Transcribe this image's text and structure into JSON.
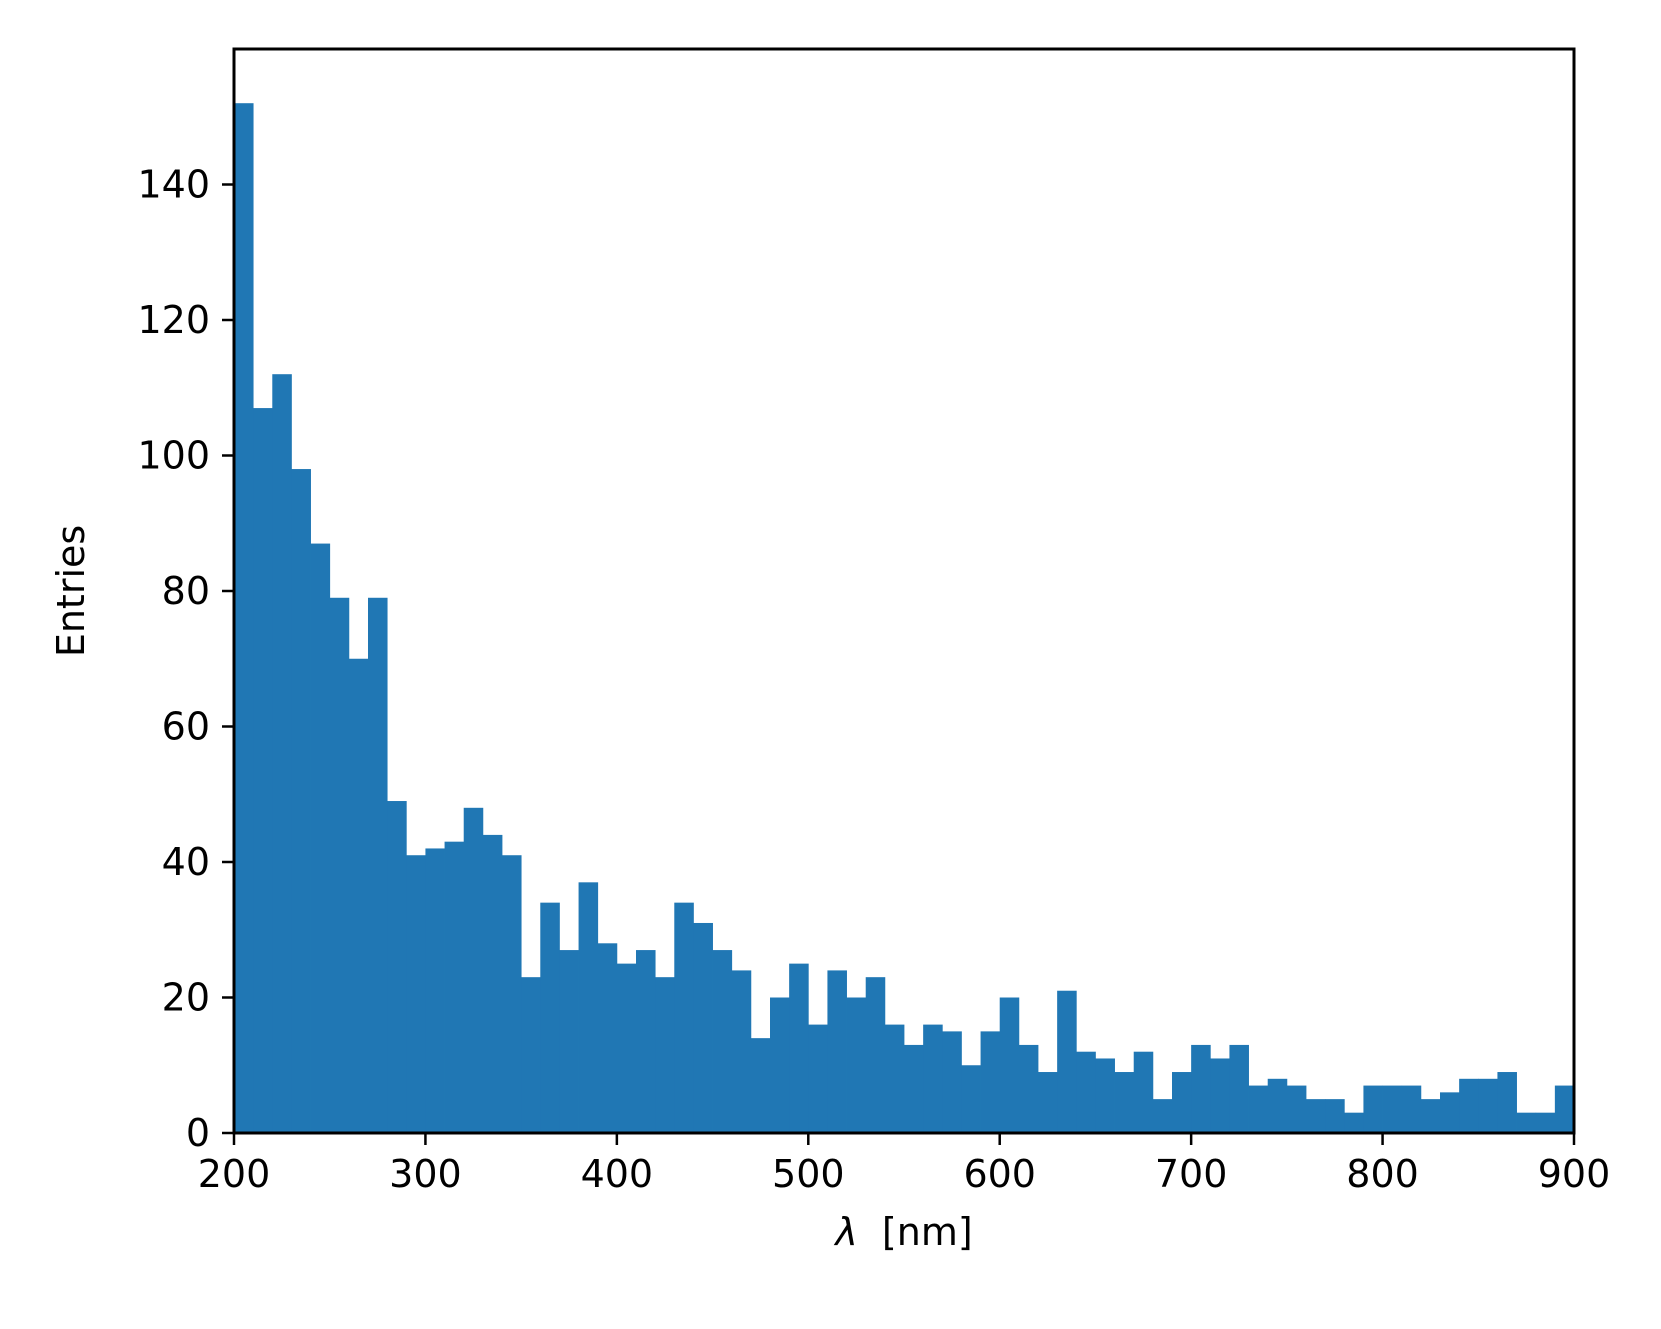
{
  "chart_data": {
    "type": "bar",
    "subtype": "histogram",
    "xlabel_symbol": "λ",
    "xlabel_unit": "[nm]",
    "ylabel": "Entries",
    "xlim": [
      200,
      900
    ],
    "ylim": [
      0,
      160
    ],
    "xticks": [
      200,
      300,
      400,
      500,
      600,
      700,
      800,
      900
    ],
    "yticks": [
      0,
      20,
      40,
      60,
      80,
      100,
      120,
      140
    ],
    "bin_start": 200,
    "bin_width": 10,
    "values": [
      152,
      107,
      112,
      98,
      87,
      79,
      70,
      79,
      49,
      41,
      42,
      43,
      48,
      44,
      41,
      23,
      34,
      27,
      37,
      28,
      25,
      27,
      23,
      34,
      31,
      27,
      24,
      14,
      20,
      25,
      16,
      24,
      20,
      23,
      16,
      13,
      16,
      15,
      10,
      15,
      20,
      13,
      9,
      21,
      12,
      11,
      9,
      12,
      5,
      9,
      13,
      11,
      13,
      7,
      8,
      7,
      5,
      5,
      3,
      7,
      7,
      7,
      5,
      6,
      8,
      8,
      9,
      3,
      3,
      7
    ],
    "grid": false,
    "legend": "none",
    "bar_color": "#2077b4"
  }
}
